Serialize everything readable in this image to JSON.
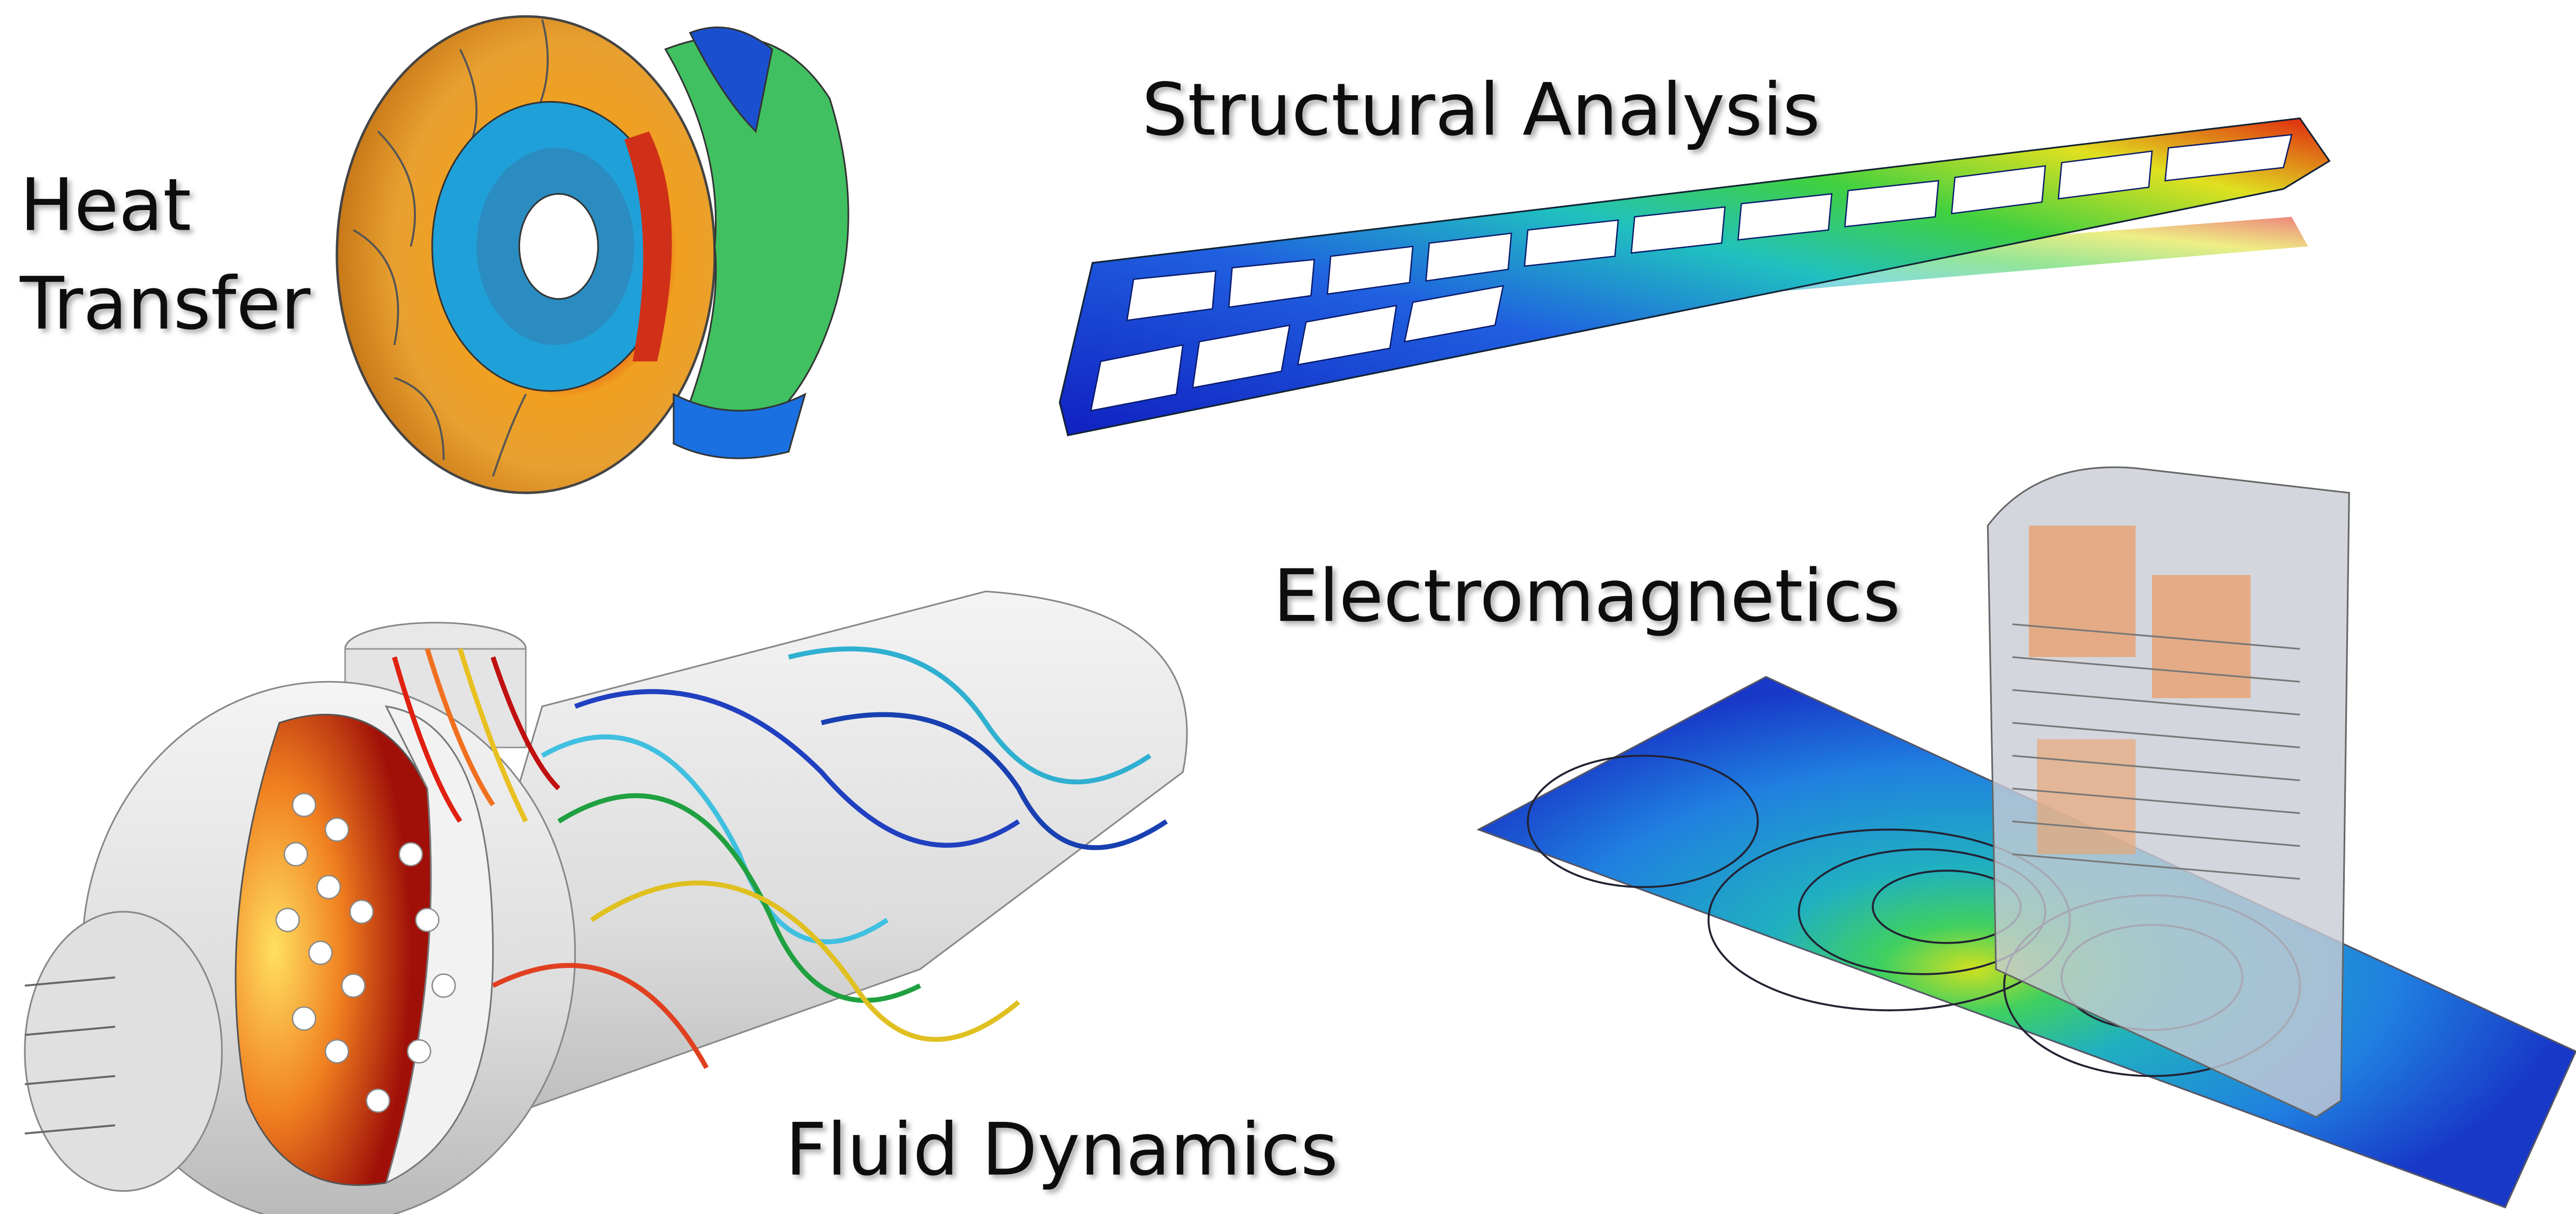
{
  "labels": {
    "heat_transfer": [
      "Heat",
      "Transfer"
    ],
    "structural_analysis": "Structural Analysis",
    "electromagnetics": "Electromagnetics",
    "fluid_dynamics": "Fluid Dynamics"
  }
}
